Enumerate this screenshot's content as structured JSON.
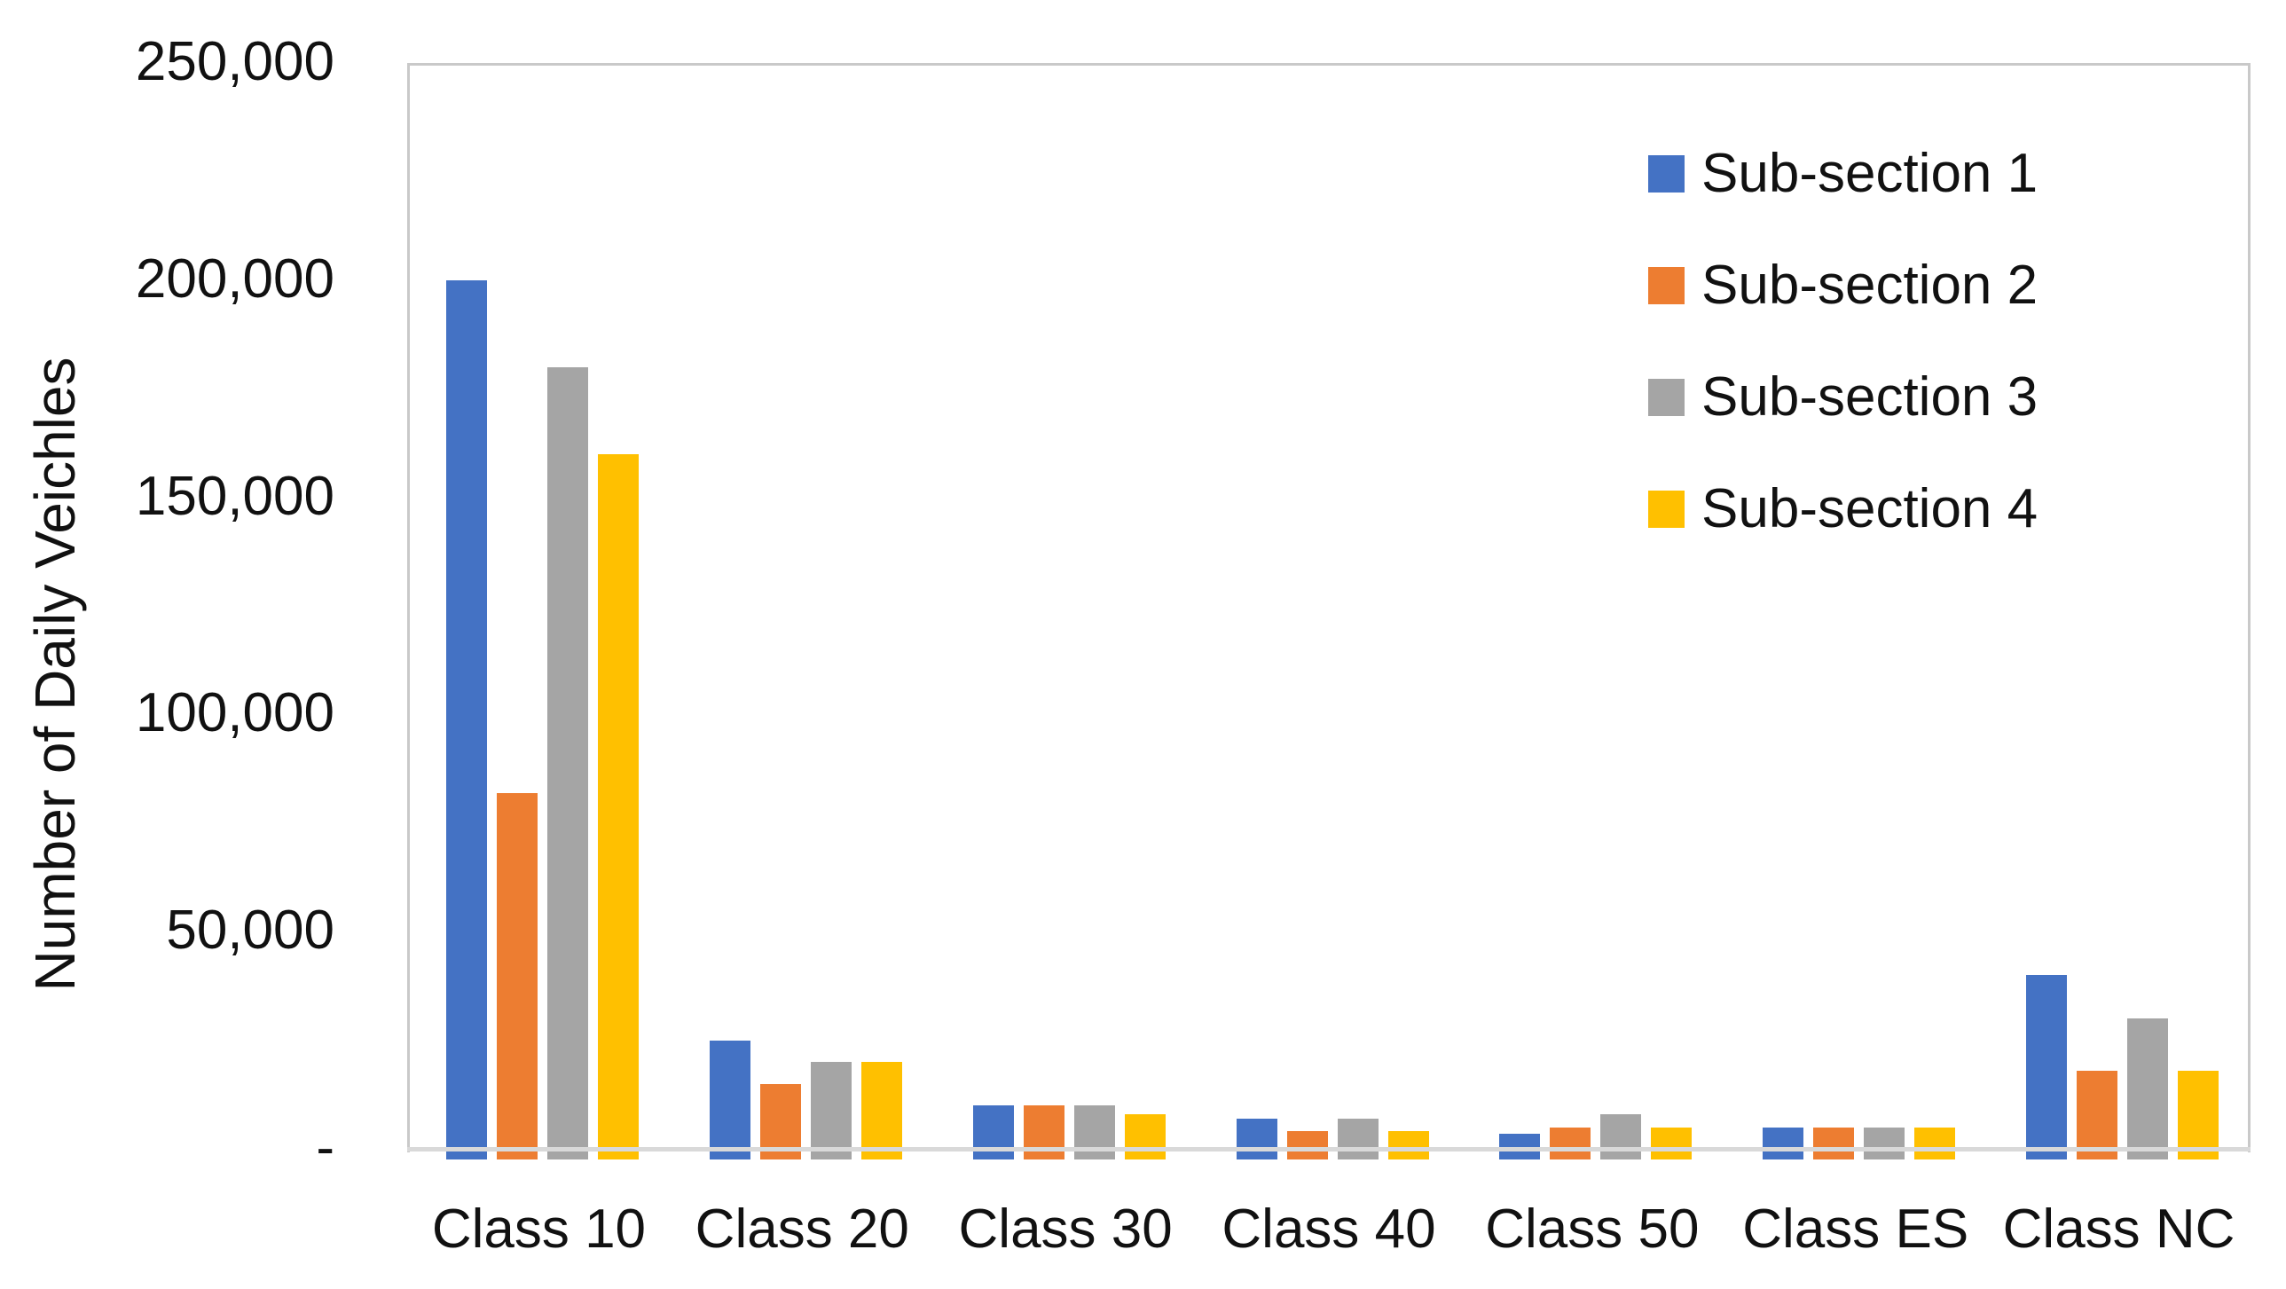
{
  "chart_data": {
    "type": "bar",
    "title": "",
    "ylabel": "Number of Daily Veichles",
    "xlabel": "",
    "categories": [
      "Class 10",
      "Class 20",
      "Class 30",
      "Class 40",
      "Class 50",
      "Class ES",
      "Class NC"
    ],
    "series": [
      {
        "name": "Sub-section 1",
        "color": "#4472C4",
        "values": [
          200000,
          25000,
          10000,
          7000,
          3500,
          5000,
          40000
        ]
      },
      {
        "name": "Sub-section 2",
        "color": "#ED7D31",
        "values": [
          82000,
          15000,
          10000,
          4000,
          5000,
          5000,
          18000
        ]
      },
      {
        "name": "Sub-section 3",
        "color": "#A5A5A5",
        "values": [
          180000,
          20000,
          10000,
          7000,
          8000,
          5000,
          30000
        ]
      },
      {
        "name": "Sub-section 4",
        "color": "#FFC000",
        "values": [
          160000,
          20000,
          8000,
          4000,
          5000,
          5000,
          18000
        ]
      }
    ],
    "ylim": [
      0,
      250000
    ],
    "ytick_labels": [
      "250,000",
      "200,000",
      "150,000",
      "100,000",
      "50,000",
      "-"
    ],
    "grid": false,
    "legend_position": "inside-top-right",
    "axis_line_color": "#d9d9d9",
    "plot_border_color": "#c9c9c9"
  }
}
